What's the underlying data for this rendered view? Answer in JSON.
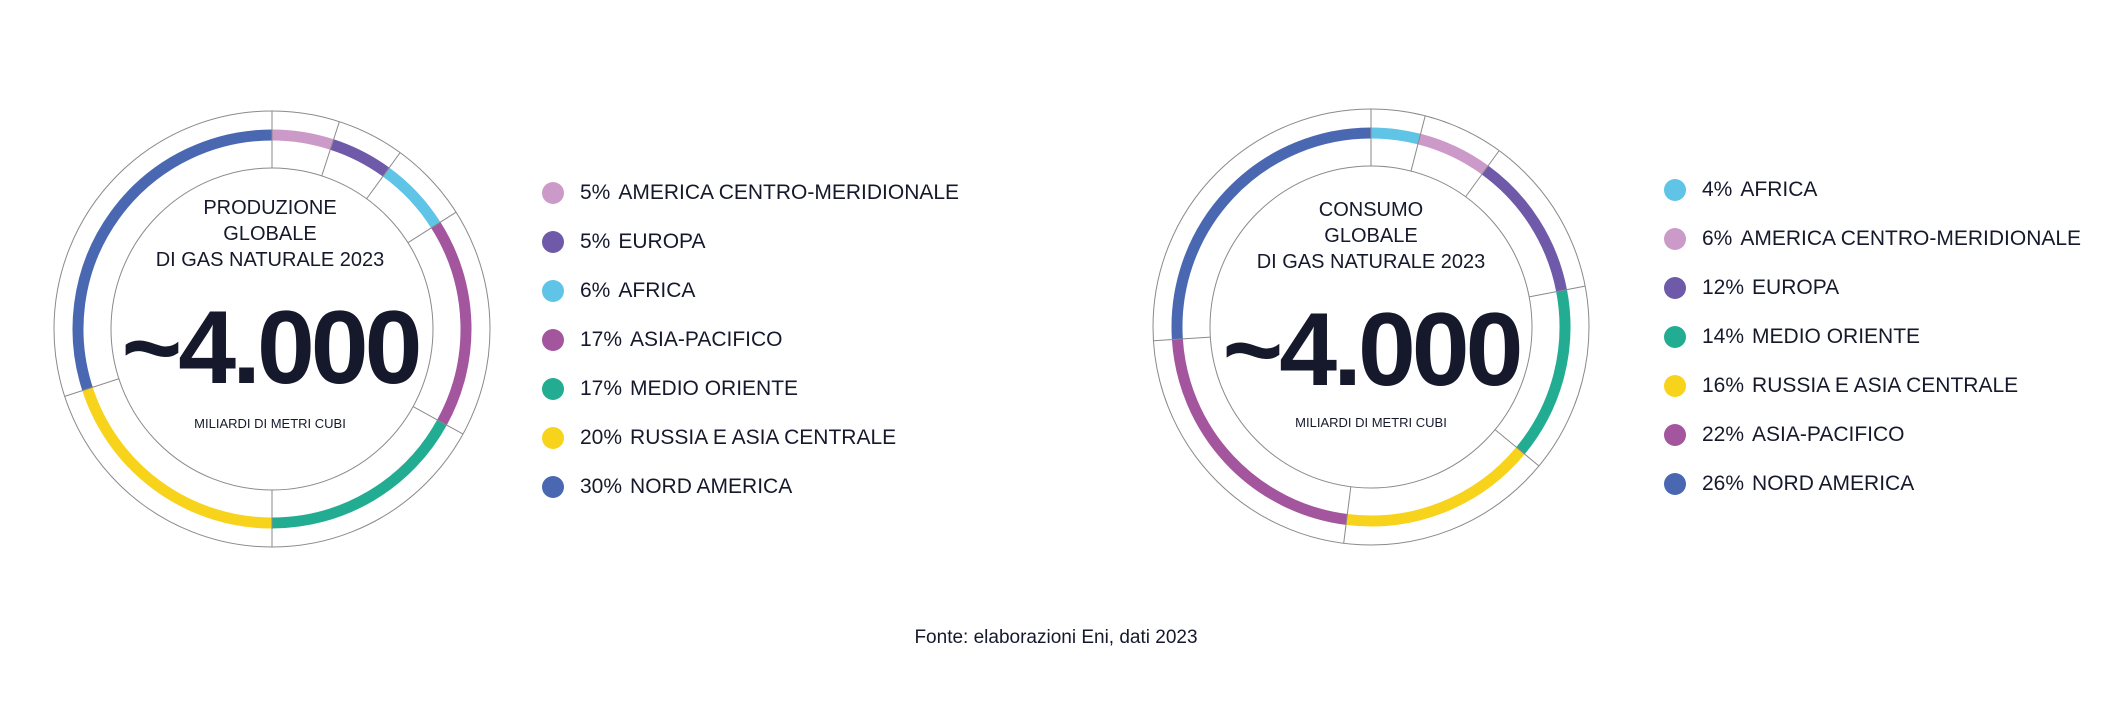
{
  "chart_data": [
    {
      "type": "pie",
      "style": "donut",
      "title": "PRODUZIONE\nGLOBALE\nDI GAS NATURALE 2023",
      "center_value": "~4.000",
      "unit": "MILIARDI DI METRI CUBI",
      "legend_position": "right",
      "slices": [
        {
          "label": "AMERICA CENTRO-MERIDIONALE",
          "percent_label": "5%",
          "value": 5,
          "color": "#cc9ac8"
        },
        {
          "label": "EUROPA",
          "percent_label": "5%",
          "value": 5,
          "color": "#6e5aa8"
        },
        {
          "label": "AFRICA",
          "percent_label": "6%",
          "value": 6,
          "color": "#5fc4e6"
        },
        {
          "label": "ASIA-PACIFICO",
          "percent_label": "17%",
          "value": 17,
          "color": "#a3559e"
        },
        {
          "label": "MEDIO ORIENTE",
          "percent_label": "17%",
          "value": 17,
          "color": "#22ad92"
        },
        {
          "label": "RUSSIA E ASIA CENTRALE",
          "percent_label": "20%",
          "value": 20,
          "color": "#f8d31c"
        },
        {
          "label": "NORD AMERICA",
          "percent_label": "30%",
          "value": 30,
          "color": "#4a68b2"
        }
      ]
    },
    {
      "type": "pie",
      "style": "donut",
      "title": "CONSUMO\nGLOBALE\nDI GAS NATURALE 2023",
      "center_value": "~4.000",
      "unit": "MILIARDI DI METRI CUBI",
      "legend_position": "right",
      "slices": [
        {
          "label": "AFRICA",
          "percent_label": "4%",
          "value": 4,
          "color": "#5fc4e6"
        },
        {
          "label": "AMERICA CENTRO-MERIDIONALE",
          "percent_label": "6%",
          "value": 6,
          "color": "#cc9ac8"
        },
        {
          "label": "EUROPA",
          "percent_label": "12%",
          "value": 12,
          "color": "#6e5aa8"
        },
        {
          "label": "MEDIO ORIENTE",
          "percent_label": "14%",
          "value": 14,
          "color": "#22ad92"
        },
        {
          "label": "RUSSIA E ASIA CENTRALE",
          "percent_label": "16%",
          "value": 16,
          "color": "#f8d31c"
        },
        {
          "label": "ASIA-PACIFICO",
          "percent_label": "22%",
          "value": 22,
          "color": "#a3559e"
        },
        {
          "label": "NORD AMERICA",
          "percent_label": "26%",
          "value": 26,
          "color": "#4a68b2"
        }
      ]
    }
  ],
  "source": "Fonte: elaborazioni Eni, dati 2023"
}
